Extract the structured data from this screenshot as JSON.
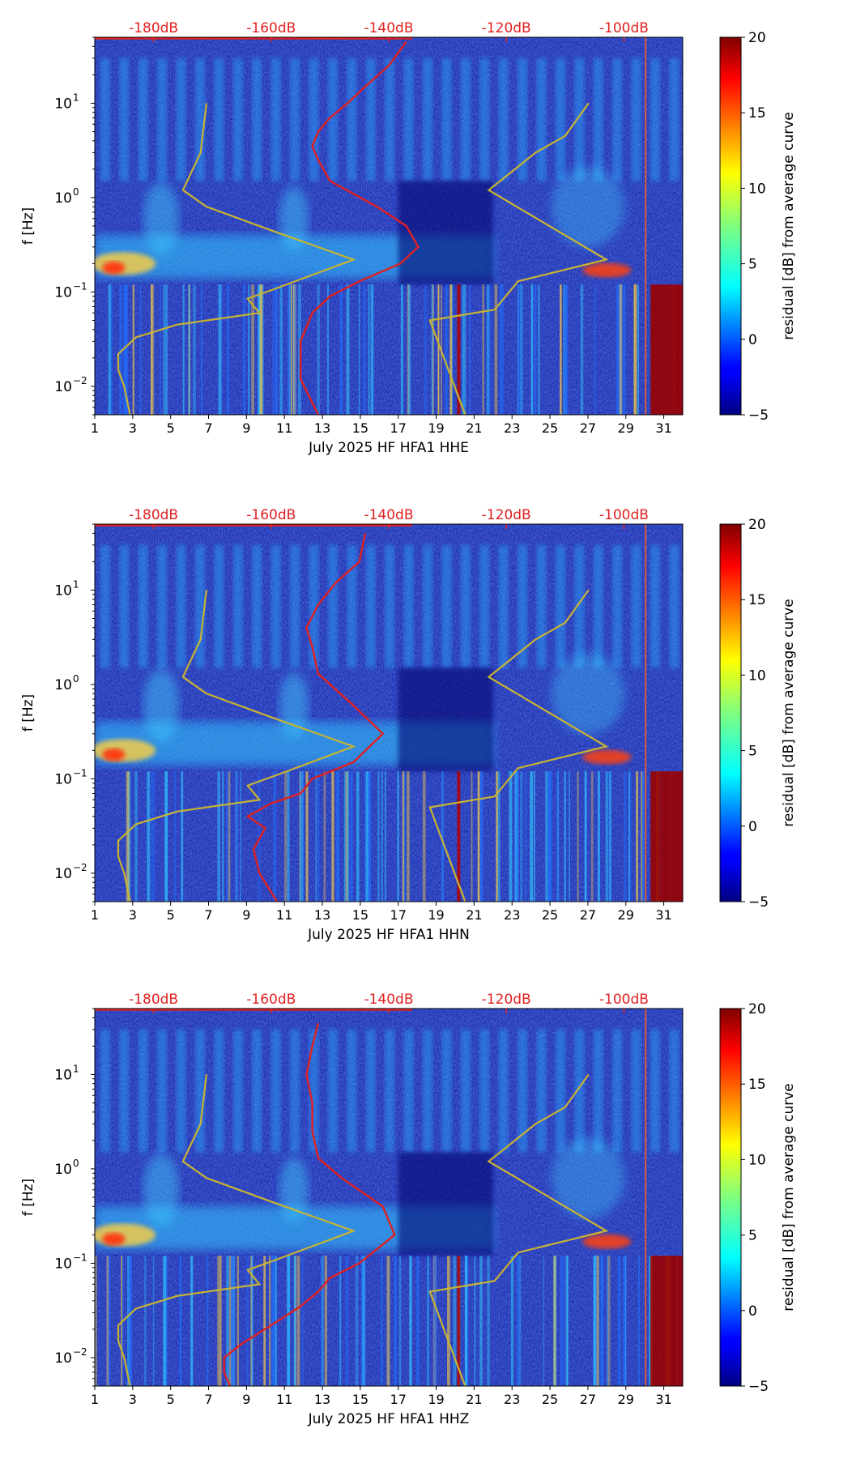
{
  "chart_data": [
    {
      "type": "heatmap",
      "xlabel": "July 2025 HF HFA1  HHE",
      "ylabel": "f [Hz]",
      "x_ticks": [
        "1",
        "3",
        "5",
        "7",
        "9",
        "11",
        "13",
        "15",
        "17",
        "19",
        "21",
        "23",
        "25",
        "27",
        "29",
        "31"
      ],
      "xlim": [
        1,
        32
      ],
      "y_ticks": [
        {
          "value": 0.01,
          "base": "10",
          "exp": "−2"
        },
        {
          "value": 0.1,
          "base": "10",
          "exp": "−1"
        },
        {
          "value": 1,
          "base": "10",
          "exp": "0"
        },
        {
          "value": 10,
          "base": "10",
          "exp": "1"
        }
      ],
      "ylim": [
        0.005,
        50
      ],
      "top_axis_labels": [
        "-180dB",
        "-160dB",
        "-140dB",
        "-120dB",
        "-100dB"
      ],
      "top_axis_range_db": [
        -190,
        -90
      ],
      "colorbar": {
        "label": "residual [dB] from average curve",
        "ticks": [
          "−5",
          "0",
          "5",
          "10",
          "15",
          "20"
        ],
        "range": [
          -5,
          20
        ]
      },
      "noise_model_high": [
        [
          -106,
          10
        ],
        [
          -110,
          4.5
        ],
        [
          -115,
          3
        ],
        [
          -123,
          1.2
        ],
        [
          -103,
          0.22
        ],
        [
          -118,
          0.13
        ],
        [
          -122,
          0.065
        ],
        [
          -133,
          0.05
        ],
        [
          -127,
          0.005
        ]
      ],
      "noise_model_low": [
        [
          -184,
          0.005
        ],
        [
          -185,
          0.01
        ],
        [
          -186,
          0.015
        ],
        [
          -186,
          0.022
        ],
        [
          -183,
          0.033
        ],
        [
          -176,
          0.045
        ],
        [
          -162,
          0.06
        ],
        [
          -164,
          0.085
        ],
        [
          -159,
          0.11
        ],
        [
          -146,
          0.22
        ],
        [
          -160,
          0.45
        ],
        [
          -171,
          0.8
        ],
        [
          -175,
          1.2
        ],
        [
          -172,
          3
        ],
        [
          -171,
          10
        ]
      ],
      "station_psd_db": [
        [
          -152,
          0.005
        ],
        [
          -155,
          0.012
        ],
        [
          -155,
          0.03
        ],
        [
          -153,
          0.06
        ],
        [
          -150,
          0.09
        ],
        [
          -145,
          0.13
        ],
        [
          -138,
          0.2
        ],
        [
          -135,
          0.3
        ],
        [
          -137,
          0.5
        ],
        [
          -142,
          0.8
        ],
        [
          -150,
          1.5
        ],
        [
          -152,
          2.5
        ],
        [
          -153,
          3.5
        ],
        [
          -152,
          5
        ],
        [
          -150,
          7
        ],
        [
          -147,
          10
        ],
        [
          -144,
          15
        ],
        [
          -140,
          25
        ],
        [
          -137,
          45
        ]
      ]
    },
    {
      "type": "heatmap",
      "xlabel": "July 2025 HF HFA1  HHN",
      "ylabel": "f [Hz]",
      "x_ticks": [
        "1",
        "3",
        "5",
        "7",
        "9",
        "11",
        "13",
        "15",
        "17",
        "19",
        "21",
        "23",
        "25",
        "27",
        "29",
        "31"
      ],
      "xlim": [
        1,
        32
      ],
      "y_ticks": [
        {
          "value": 0.01,
          "base": "10",
          "exp": "−2"
        },
        {
          "value": 0.1,
          "base": "10",
          "exp": "−1"
        },
        {
          "value": 1,
          "base": "10",
          "exp": "0"
        },
        {
          "value": 10,
          "base": "10",
          "exp": "1"
        }
      ],
      "ylim": [
        0.005,
        50
      ],
      "top_axis_labels": [
        "-180dB",
        "-160dB",
        "-140dB",
        "-120dB",
        "-100dB"
      ],
      "top_axis_range_db": [
        -190,
        -90
      ],
      "colorbar": {
        "label": "residual [dB] from average curve",
        "ticks": [
          "−5",
          "0",
          "5",
          "10",
          "15",
          "20"
        ],
        "range": [
          -5,
          20
        ]
      },
      "noise_model_high": [
        [
          -106,
          10
        ],
        [
          -110,
          4.5
        ],
        [
          -115,
          3
        ],
        [
          -123,
          1.2
        ],
        [
          -103,
          0.22
        ],
        [
          -118,
          0.13
        ],
        [
          -122,
          0.065
        ],
        [
          -133,
          0.05
        ],
        [
          -127,
          0.005
        ]
      ],
      "noise_model_low": [
        [
          -184,
          0.005
        ],
        [
          -185,
          0.01
        ],
        [
          -186,
          0.015
        ],
        [
          -186,
          0.022
        ],
        [
          -183,
          0.033
        ],
        [
          -176,
          0.045
        ],
        [
          -162,
          0.06
        ],
        [
          -164,
          0.085
        ],
        [
          -159,
          0.11
        ],
        [
          -146,
          0.22
        ],
        [
          -160,
          0.45
        ],
        [
          -171,
          0.8
        ],
        [
          -175,
          1.2
        ],
        [
          -172,
          3
        ],
        [
          -171,
          10
        ]
      ],
      "station_psd_db": [
        [
          -159,
          0.005
        ],
        [
          -162,
          0.01
        ],
        [
          -163,
          0.018
        ],
        [
          -161,
          0.03
        ],
        [
          -164,
          0.04
        ],
        [
          -160,
          0.055
        ],
        [
          -155,
          0.07
        ],
        [
          -153,
          0.1
        ],
        [
          -146,
          0.15
        ],
        [
          -141,
          0.3
        ],
        [
          -146,
          0.6
        ],
        [
          -152,
          1.3
        ],
        [
          -153,
          2.5
        ],
        [
          -154,
          4
        ],
        [
          -152,
          7
        ],
        [
          -149,
          12
        ],
        [
          -145,
          20
        ],
        [
          -144,
          40
        ]
      ]
    },
    {
      "type": "heatmap",
      "xlabel": "July 2025 HF HFA1  HHZ",
      "ylabel": "f [Hz]",
      "x_ticks": [
        "1",
        "3",
        "5",
        "7",
        "9",
        "11",
        "13",
        "15",
        "17",
        "19",
        "21",
        "23",
        "25",
        "27",
        "29",
        "31"
      ],
      "xlim": [
        1,
        32
      ],
      "y_ticks": [
        {
          "value": 0.01,
          "base": "10",
          "exp": "−2"
        },
        {
          "value": 0.1,
          "base": "10",
          "exp": "−1"
        },
        {
          "value": 1,
          "base": "10",
          "exp": "0"
        },
        {
          "value": 10,
          "base": "10",
          "exp": "1"
        }
      ],
      "ylim": [
        0.005,
        50
      ],
      "top_axis_labels": [
        "-180dB",
        "-160dB",
        "-140dB",
        "-120dB",
        "-100dB"
      ],
      "top_axis_range_db": [
        -190,
        -90
      ],
      "colorbar": {
        "label": "residual [dB] from average curve",
        "ticks": [
          "−5",
          "0",
          "5",
          "10",
          "15",
          "20"
        ],
        "range": [
          -5,
          20
        ]
      },
      "noise_model_high": [
        [
          -106,
          10
        ],
        [
          -110,
          4.5
        ],
        [
          -115,
          3
        ],
        [
          -123,
          1.2
        ],
        [
          -103,
          0.22
        ],
        [
          -118,
          0.13
        ],
        [
          -122,
          0.065
        ],
        [
          -133,
          0.05
        ],
        [
          -127,
          0.005
        ]
      ],
      "noise_model_low": [
        [
          -184,
          0.005
        ],
        [
          -185,
          0.01
        ],
        [
          -186,
          0.015
        ],
        [
          -186,
          0.022
        ],
        [
          -183,
          0.033
        ],
        [
          -176,
          0.045
        ],
        [
          -162,
          0.06
        ],
        [
          -164,
          0.085
        ],
        [
          -159,
          0.11
        ],
        [
          -146,
          0.22
        ],
        [
          -160,
          0.45
        ],
        [
          -171,
          0.8
        ],
        [
          -175,
          1.2
        ],
        [
          -172,
          3
        ],
        [
          -171,
          10
        ]
      ],
      "station_psd_db": [
        [
          -167,
          0.005
        ],
        [
          -168,
          0.007
        ],
        [
          -168,
          0.01
        ],
        [
          -165,
          0.014
        ],
        [
          -160,
          0.022
        ],
        [
          -155,
          0.035
        ],
        [
          -152,
          0.05
        ],
        [
          -150,
          0.07
        ],
        [
          -145,
          0.1
        ],
        [
          -139,
          0.2
        ],
        [
          -141,
          0.4
        ],
        [
          -148,
          0.8
        ],
        [
          -152,
          1.3
        ],
        [
          -153,
          2.5
        ],
        [
          -153,
          5
        ],
        [
          -154,
          10
        ],
        [
          -153,
          20
        ],
        [
          -152,
          35
        ]
      ]
    }
  ],
  "colors": {
    "noise_model": "#c8b432",
    "station_psd": "#e02020",
    "top_axis": "#e02020"
  }
}
